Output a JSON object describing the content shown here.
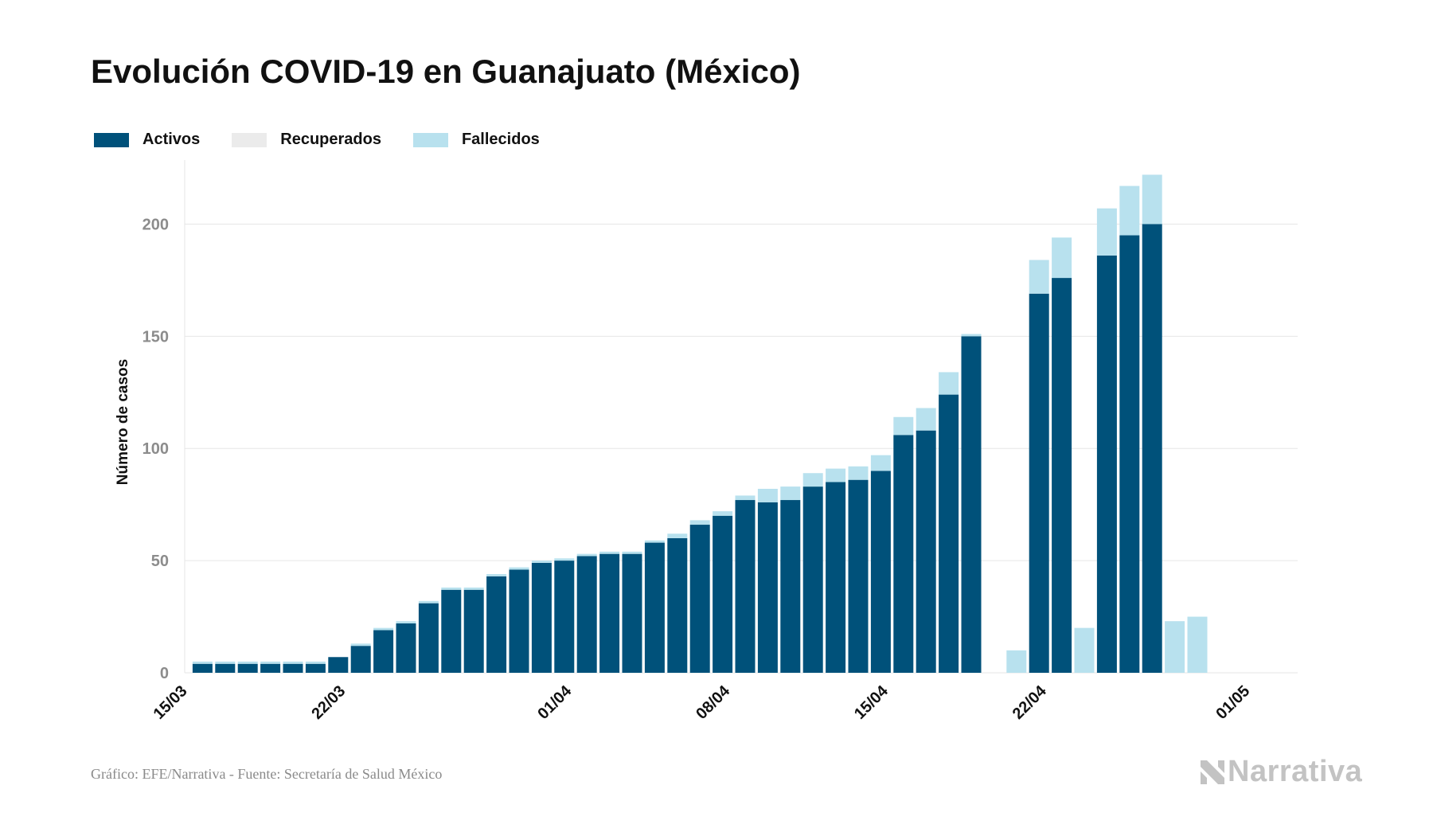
{
  "title": "Evolución COVID-19 en Guanajuato (México)",
  "footer": {
    "source": "Gráfico: EFE/Narrativa - Fuente: Secretaría de Salud México",
    "logo_text": "Narrativa"
  },
  "colors": {
    "activos": "#00517a",
    "recuperados": "#ebebeb",
    "fallecidos": "#b8e1ee",
    "grid": "#e6e6e6",
    "tick_y": "#8c8c8c",
    "tick_x": "#111111"
  },
  "chart_data": {
    "type": "bar",
    "stacked": true,
    "title": "Evolución COVID-19 en Guanajuato (México)",
    "ylabel": "Número de casos",
    "xlabel": "",
    "ylim": [
      0,
      225
    ],
    "yticks": [
      0,
      50,
      100,
      150,
      200
    ],
    "grid": true,
    "legend_position": "top-left",
    "x_ticks": [
      {
        "label": "15/03",
        "index": 0
      },
      {
        "label": "22/03",
        "index": 7
      },
      {
        "label": "01/04",
        "index": 17
      },
      {
        "label": "08/04",
        "index": 24
      },
      {
        "label": "15/04",
        "index": 31
      },
      {
        "label": "22/04",
        "index": 38
      },
      {
        "label": "01/05",
        "index": 47
      }
    ],
    "start_index": 1,
    "series": [
      {
        "name": "Activos",
        "color": "#00517a",
        "values": [
          4,
          4,
          4,
          4,
          4,
          4,
          7,
          12,
          19,
          22,
          31,
          37,
          37,
          43,
          46,
          49,
          50,
          52,
          53,
          53,
          58,
          60,
          66,
          70,
          77,
          76,
          77,
          83,
          85,
          86,
          90,
          106,
          108,
          124,
          150,
          0,
          0,
          169,
          176,
          0,
          186,
          195,
          200,
          0,
          0
        ]
      },
      {
        "name": "Recuperados",
        "color": "#ebebeb",
        "values": [
          0,
          0,
          0,
          0,
          0,
          0,
          0,
          0,
          0,
          0,
          0,
          0,
          0,
          0,
          0,
          0,
          0,
          0,
          0,
          0,
          0,
          0,
          0,
          0,
          0,
          0,
          0,
          0,
          0,
          0,
          0,
          0,
          0,
          0,
          0,
          0,
          0,
          0,
          0,
          0,
          0,
          0,
          0,
          0,
          0
        ]
      },
      {
        "name": "Fallecidos",
        "color": "#b8e1ee",
        "values": [
          1,
          1,
          1,
          1,
          1,
          1,
          0,
          1,
          1,
          1,
          1,
          1,
          1,
          1,
          1,
          1,
          1,
          1,
          1,
          1,
          1,
          2,
          2,
          2,
          2,
          6,
          6,
          6,
          6,
          6,
          7,
          8,
          10,
          10,
          1,
          0,
          10,
          15,
          18,
          20,
          21,
          22,
          22,
          23,
          25
        ]
      }
    ]
  }
}
